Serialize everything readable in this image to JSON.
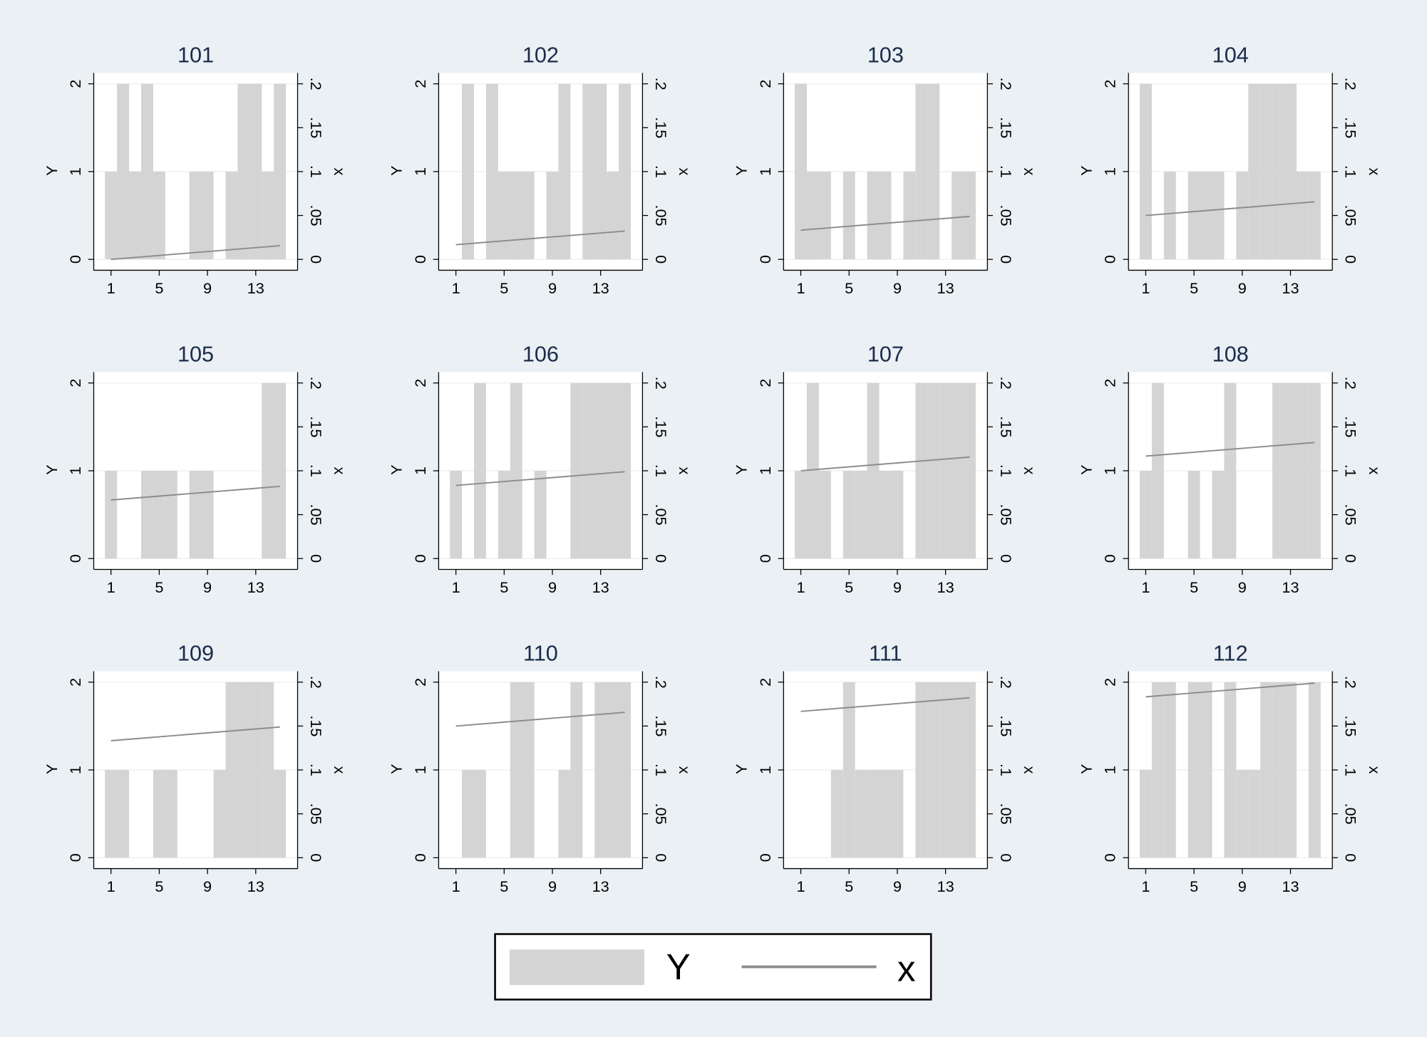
{
  "chart_data": {
    "type": "bar",
    "x": [
      1,
      2,
      3,
      4,
      5,
      6,
      7,
      8,
      9,
      10,
      11,
      12,
      13,
      14,
      15
    ],
    "line_x": [
      1,
      15
    ],
    "xlim": [
      -0.43,
      16.47
    ],
    "xticks": [
      1,
      5,
      9,
      13
    ],
    "ylim": [
      -0.124,
      2.124
    ],
    "yticks": [
      0,
      1,
      2
    ],
    "y2lim": [
      -0.0124,
      0.2124
    ],
    "y2ticks": [
      0,
      {
        "value": 0.05,
        "label": ".05"
      },
      {
        "value": 0.1,
        "label": ".1"
      },
      {
        "value": 0.15,
        "label": ".15"
      },
      {
        "value": 0.2,
        "label": ".2"
      }
    ],
    "y_label": "Y",
    "y2_label": "x",
    "grid": true,
    "series": [
      {
        "name": "Y",
        "color": "#d4d4d4"
      },
      {
        "name": "x",
        "color": "#8c8c8c",
        "axis": "y2"
      }
    ],
    "panels": [
      {
        "title": "101",
        "bars": [
          1,
          2,
          1,
          2,
          1,
          0,
          0,
          1,
          1,
          0,
          1,
          2,
          2,
          1,
          2
        ],
        "line": [
          0,
          0.0156
        ]
      },
      {
        "title": "102",
        "bars": [
          0,
          2,
          0,
          2,
          1,
          1,
          1,
          0,
          1,
          2,
          0,
          2,
          2,
          1,
          2
        ],
        "line": [
          0.0167,
          0.0322
        ]
      },
      {
        "title": "103",
        "bars": [
          2,
          1,
          1,
          0,
          1,
          0,
          1,
          1,
          0,
          1,
          2,
          2,
          0,
          1,
          1
        ],
        "line": [
          0.0333,
          0.0489
        ]
      },
      {
        "title": "104",
        "bars": [
          2,
          0,
          1,
          0,
          1,
          1,
          1,
          0,
          1,
          2,
          2,
          2,
          2,
          1,
          1
        ],
        "line": [
          0.05,
          0.0656
        ]
      },
      {
        "title": "105",
        "bars": [
          1,
          0,
          0,
          1,
          1,
          1,
          0,
          1,
          1,
          0,
          0,
          0,
          0,
          2,
          2
        ],
        "line": [
          0.0667,
          0.0822
        ]
      },
      {
        "title": "106",
        "bars": [
          1,
          0,
          2,
          0,
          1,
          2,
          0,
          1,
          0,
          0,
          2,
          2,
          2,
          2,
          2
        ],
        "line": [
          0.0833,
          0.0989
        ]
      },
      {
        "title": "107",
        "bars": [
          1,
          2,
          1,
          0,
          1,
          1,
          2,
          1,
          1,
          0,
          2,
          2,
          2,
          2,
          2
        ],
        "line": [
          0.1,
          0.1156
        ]
      },
      {
        "title": "108",
        "bars": [
          1,
          2,
          0,
          0,
          1,
          0,
          1,
          2,
          0,
          0,
          0,
          2,
          2,
          2,
          2
        ],
        "line": [
          0.1167,
          0.1322
        ]
      },
      {
        "title": "109",
        "bars": [
          1,
          1,
          0,
          0,
          1,
          1,
          0,
          0,
          0,
          1,
          2,
          2,
          2,
          2,
          1
        ],
        "line": [
          0.1333,
          0.1489
        ]
      },
      {
        "title": "110",
        "bars": [
          0,
          1,
          1,
          0,
          0,
          2,
          2,
          0,
          0,
          1,
          2,
          0,
          2,
          2,
          2
        ],
        "line": [
          0.15,
          0.1656
        ]
      },
      {
        "title": "111",
        "bars": [
          0,
          0,
          0,
          1,
          2,
          1,
          1,
          1,
          1,
          0,
          2,
          2,
          2,
          2,
          2
        ],
        "line": [
          0.1667,
          0.1822
        ]
      },
      {
        "title": "112",
        "bars": [
          1,
          2,
          2,
          0,
          2,
          2,
          0,
          2,
          1,
          1,
          2,
          2,
          2,
          0,
          2
        ],
        "line": [
          0.1833,
          0.1989
        ]
      }
    ]
  }
}
